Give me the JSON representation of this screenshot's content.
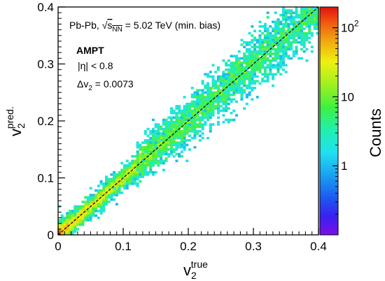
{
  "chart_data": {
    "type": "heatmap",
    "title": "",
    "xlabel": {
      "base": "v",
      "sub": "2",
      "sup": "true"
    },
    "ylabel": {
      "base": "v",
      "sub": "2",
      "sup": "pred."
    },
    "xlim": [
      0,
      0.4
    ],
    "ylim": [
      0,
      0.4
    ],
    "x_ticks": [
      "0",
      "0.1",
      "0.2",
      "0.3",
      "0.4"
    ],
    "y_ticks": [
      "0",
      "0.1",
      "0.2",
      "0.3",
      "0.4"
    ],
    "x_tick_values": [
      0,
      0.1,
      0.2,
      0.3,
      0.4
    ],
    "y_tick_values": [
      0,
      0.1,
      0.2,
      0.3,
      0.4
    ],
    "reference_line": {
      "style": "dashed",
      "color": "#000000",
      "from": [
        0,
        0
      ],
      "to": [
        0.4,
        0.4
      ]
    },
    "bins": 100,
    "point_cloud": {
      "description_free": true,
      "core_width": 0.004,
      "spread_width_small": 0.012,
      "spread_width_large": 0.025
    },
    "colorbar": {
      "label": "Counts",
      "scale": "log",
      "range": [
        0.1,
        200
      ],
      "tick_values": [
        1,
        10,
        100
      ],
      "tick_labels": [
        {
          "text": "1",
          "sup": ""
        },
        {
          "text": "10",
          "sup": ""
        },
        {
          "text": "10",
          "sup": "2"
        }
      ]
    },
    "annotations": {
      "system_line_prefix": "Pb-Pb, ",
      "sqrt_symbol": "√",
      "s_text": "s",
      "s_sub": "NN",
      "system_line_suffix": " = 5.02 TeV (min. bias)",
      "model": "AMPT",
      "eta_cut": "|η| < 0.8",
      "dv2_label": "Δv",
      "dv2_sub": "2",
      "dv2_value": " = 0.0073"
    },
    "grid": false,
    "legend": "none"
  }
}
